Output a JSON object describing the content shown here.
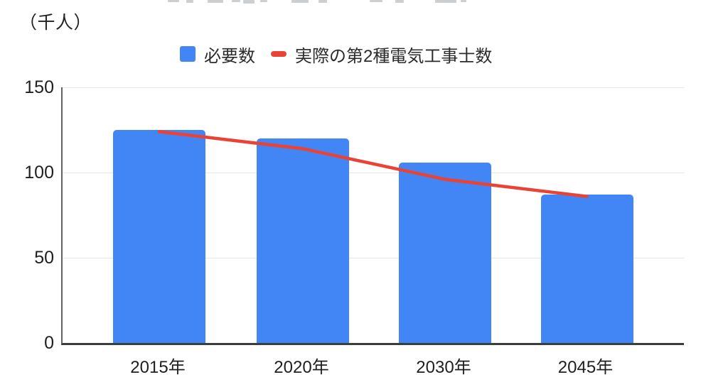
{
  "page": {
    "background": "#ffffff",
    "cropped_title_visible": true
  },
  "chart_data": {
    "type": "bar",
    "subtype": "bar-with-line-overlay",
    "unit_label": "（千人）",
    "categories": [
      "2015年",
      "2020年",
      "2030年",
      "2045年"
    ],
    "series": [
      {
        "name": "必要数",
        "type": "bar",
        "color": "#4285F4",
        "values": [
          125,
          120,
          106,
          87
        ]
      },
      {
        "name": "実際の第2種電気工事士数",
        "type": "line",
        "color": "#EA4335",
        "values": [
          124,
          114,
          96,
          86
        ]
      }
    ],
    "xlabel": "",
    "ylabel": "（千人）",
    "ylim": [
      0,
      150
    ],
    "yticks": [
      0,
      50,
      100,
      150
    ],
    "grid": true,
    "legend_position": "top"
  },
  "colors": {
    "bar_blue": "#4285F4",
    "line_red": "#EA4335",
    "gridline": "#e6e6e6",
    "axis_dark": "#3c3c3c",
    "text_dark": "#1f1f1f"
  }
}
